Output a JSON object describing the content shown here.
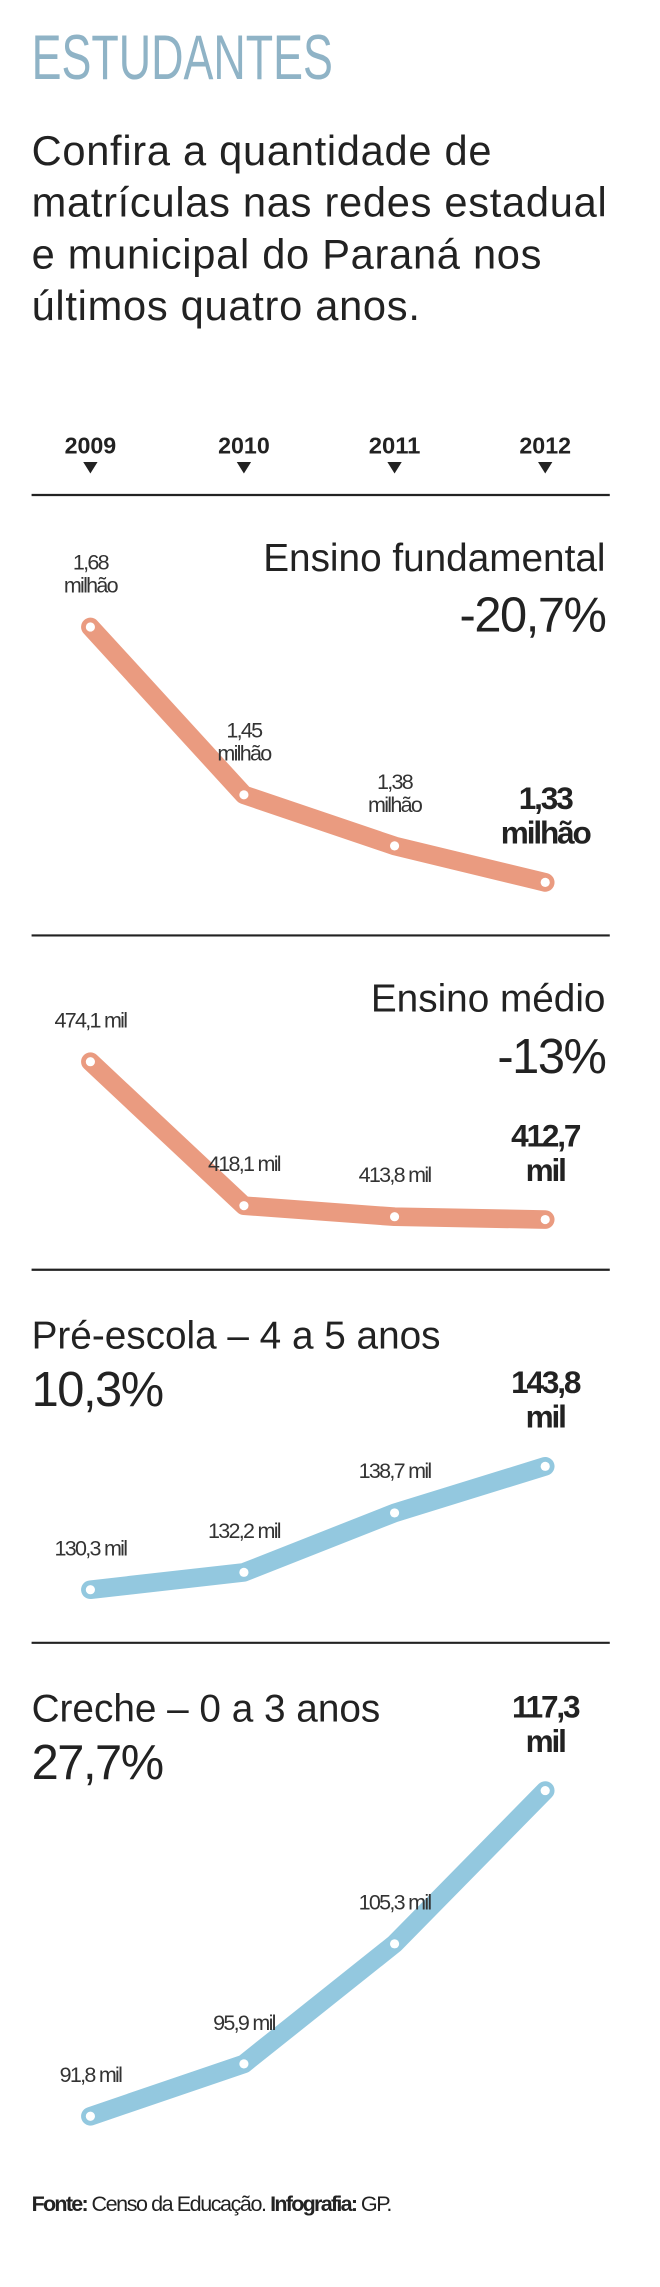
{
  "header": {
    "title": "ESTUDANTES",
    "subtitle": "Confira a quantidade de matrículas nas redes estadual e municipal do Paraná nos últimos quatro anos."
  },
  "years": [
    "2009",
    "2010",
    "2011",
    "2012"
  ],
  "chart_data": [
    {
      "type": "line",
      "title": "Ensino fundamental",
      "change": "-20,7%",
      "color": "#ea9b80",
      "values": [
        1.68,
        1.45,
        1.38,
        1.33
      ],
      "value_labels": [
        "1,68 milhão",
        "1,45 milhão",
        "1,38 milhão",
        "1,33 milhão"
      ]
    },
    {
      "type": "line",
      "title": "Ensino médio",
      "change": "-13%",
      "color": "#ea9b80",
      "values": [
        474.1,
        418.1,
        413.8,
        412.7
      ],
      "value_labels": [
        "474,1 mil",
        "418,1 mil",
        "413,8 mil",
        "412,7 mil"
      ]
    },
    {
      "type": "line",
      "title": "Pré-escola – 4 a 5 anos",
      "change": "10,3%",
      "color": "#93c8df",
      "values": [
        130.3,
        132.2,
        138.7,
        143.8
      ],
      "value_labels": [
        "130,3 mil",
        "132,2 mil",
        "138,7 mil",
        "143,8 mil"
      ]
    },
    {
      "type": "line",
      "title": "Creche – 0 a 3 anos",
      "change": "27,7%",
      "color": "#93c8df",
      "values": [
        91.8,
        95.9,
        105.3,
        117.3
      ],
      "value_labels": [
        "91,8 mil",
        "95,9 mil",
        "105,3 mil",
        "117,3 mil"
      ]
    }
  ],
  "source": {
    "label": "Fonte:",
    "text": "Censo da Educação.",
    "credit_label": "Infografia:",
    "credit": "GP."
  }
}
